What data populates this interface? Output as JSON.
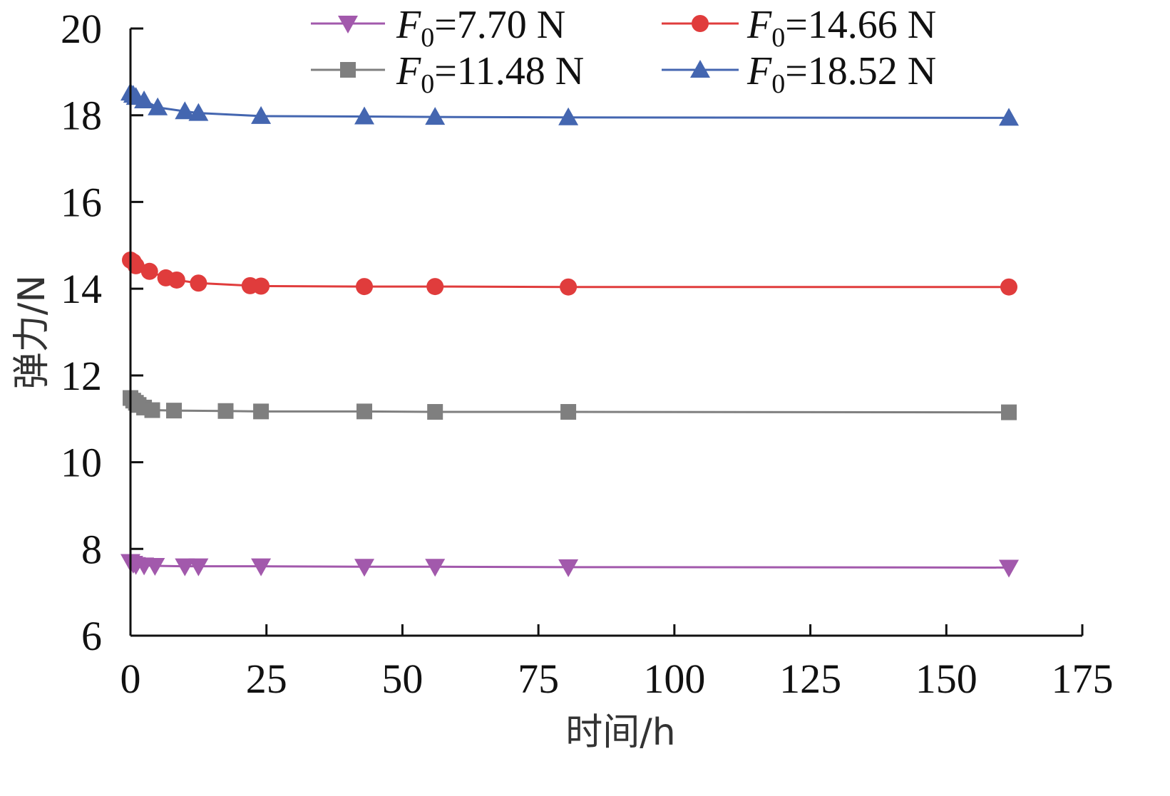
{
  "chart_data": {
    "type": "line",
    "title": "",
    "xlabel": "时间/h",
    "ylabel": "弹力/N",
    "xlim": [
      0,
      175
    ],
    "ylim": [
      6,
      20
    ],
    "xticks": [
      0,
      25,
      50,
      75,
      100,
      125,
      150,
      175
    ],
    "yticks": [
      6,
      8,
      10,
      12,
      14,
      16,
      18,
      20
    ],
    "grid": false,
    "legend_position": "top",
    "series": [
      {
        "name": "F0=7.70 N",
        "legend": {
          "symbol": "F",
          "subscript": "0",
          "text": "=7.70 N"
        },
        "color": "#a259ac",
        "marker": "triangle-down",
        "x": [
          0,
          0.5,
          1,
          2.5,
          4.5,
          10,
          12.5,
          24,
          43,
          56,
          80.5,
          161.5
        ],
        "y": [
          7.7,
          7.66,
          7.63,
          7.62,
          7.61,
          7.6,
          7.6,
          7.6,
          7.59,
          7.59,
          7.58,
          7.57
        ]
      },
      {
        "name": "F0=14.66 N",
        "legend": {
          "symbol": "F",
          "subscript": "0",
          "text": "=14.66 N"
        },
        "color": "#e03c3c",
        "marker": "circle",
        "x": [
          0,
          0.5,
          1,
          3.5,
          6.5,
          8.5,
          12.5,
          22,
          24,
          43,
          56,
          80.5,
          161.5
        ],
        "y": [
          14.66,
          14.62,
          14.53,
          14.4,
          14.25,
          14.2,
          14.13,
          14.07,
          14.06,
          14.05,
          14.05,
          14.04,
          14.04
        ]
      },
      {
        "name": "F0=11.48 N",
        "legend": {
          "symbol": "F",
          "subscript": "0",
          "text": "=11.48 N"
        },
        "color": "#7f7f7f",
        "marker": "square",
        "x": [
          0,
          0.5,
          1,
          1.5,
          2.5,
          4,
          8,
          17.5,
          24,
          43,
          56,
          80.5,
          161.5
        ],
        "y": [
          11.48,
          11.42,
          11.37,
          11.32,
          11.26,
          11.2,
          11.19,
          11.18,
          11.17,
          11.17,
          11.16,
          11.16,
          11.15
        ]
      },
      {
        "name": "F0=18.52 N",
        "legend": {
          "symbol": "F",
          "subscript": "0",
          "text": "=18.52 N"
        },
        "color": "#4466b0",
        "marker": "triangle-up",
        "x": [
          0,
          0.5,
          1,
          2.5,
          5,
          10,
          12.5,
          24,
          43,
          56,
          80.5,
          161.5
        ],
        "y": [
          18.52,
          18.47,
          18.42,
          18.34,
          18.18,
          18.09,
          18.05,
          17.98,
          17.97,
          17.96,
          17.95,
          17.94
        ]
      }
    ]
  }
}
